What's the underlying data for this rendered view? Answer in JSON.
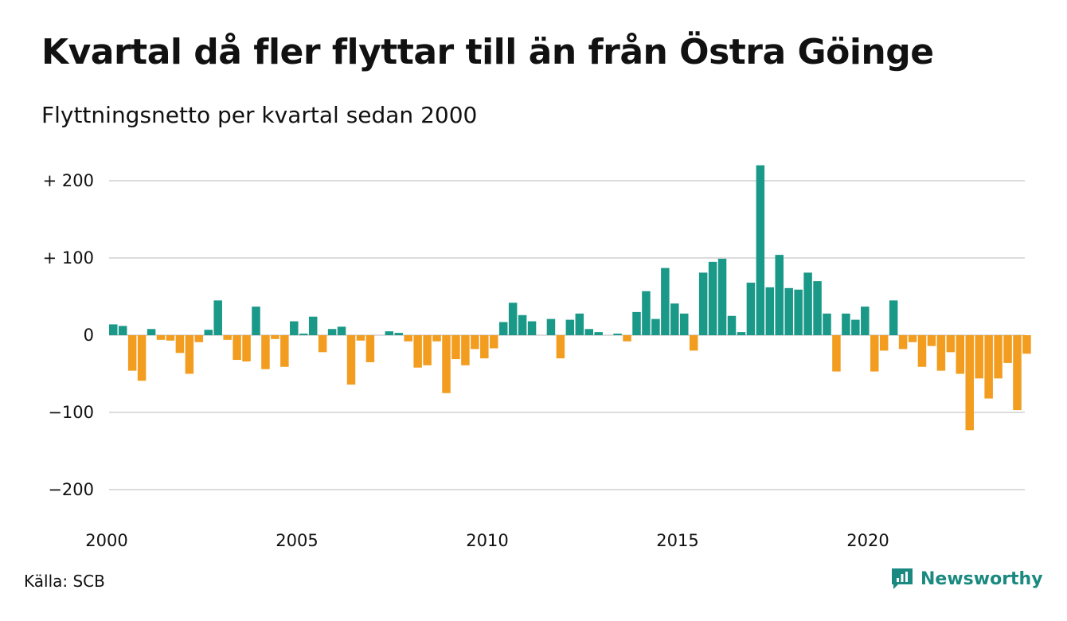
{
  "title": "Kvartal då fler flyttar till än från Östra Göinge",
  "subtitle": "Flyttningsnetto per kvartal sedan 2000",
  "source": "Källa: SCB",
  "brand": "Newsworthy",
  "colors": {
    "positive": "#1a9988",
    "negative": "#f29d1f",
    "grid": "#dcdcdc",
    "brand": "#1a8a80"
  },
  "chart_data": {
    "type": "bar",
    "title": "Kvartal då fler flyttar till än från Östra Göinge",
    "subtitle": "Flyttningsnetto per kvartal sedan 2000",
    "xlabel": "",
    "ylabel": "",
    "ylim": [
      -220,
      230
    ],
    "grid": true,
    "y_ticks": [
      {
        "value": 200,
        "label": "+ 200"
      },
      {
        "value": 100,
        "label": "+ 100"
      },
      {
        "value": 0,
        "label": "0"
      },
      {
        "value": -100,
        "label": "−100"
      },
      {
        "value": -200,
        "label": "−200"
      }
    ],
    "x_ticks": [
      {
        "value": 2000,
        "label": "2000"
      },
      {
        "value": 2005,
        "label": "2005"
      },
      {
        "value": 2010,
        "label": "2010"
      },
      {
        "value": 2015,
        "label": "2015"
      },
      {
        "value": 2020,
        "label": "2020"
      }
    ],
    "x_start": "2000 Q1",
    "values": [
      14,
      12,
      -46,
      -59,
      8,
      -6,
      -7,
      -23,
      -50,
      -9,
      7,
      45,
      -6,
      -32,
      -34,
      37,
      -44,
      -5,
      -41,
      18,
      2,
      24,
      -22,
      8,
      11,
      -64,
      -7,
      -35,
      0,
      5,
      3,
      -8,
      -42,
      -39,
      -8,
      -75,
      -31,
      -39,
      -18,
      -30,
      -17,
      17,
      42,
      26,
      18,
      0,
      21,
      -30,
      20,
      28,
      8,
      4,
      0,
      2,
      -8,
      30,
      57,
      21,
      87,
      41,
      28,
      -20,
      81,
      95,
      99,
      25,
      4,
      68,
      220,
      62,
      104,
      61,
      59,
      81,
      70,
      28,
      -47,
      28,
      20,
      37,
      -47,
      -20,
      45,
      -18,
      -9,
      -41,
      -14,
      -46,
      -22,
      -50,
      -123,
      -56,
      -82,
      -56,
      -36,
      -97,
      -24
    ]
  }
}
